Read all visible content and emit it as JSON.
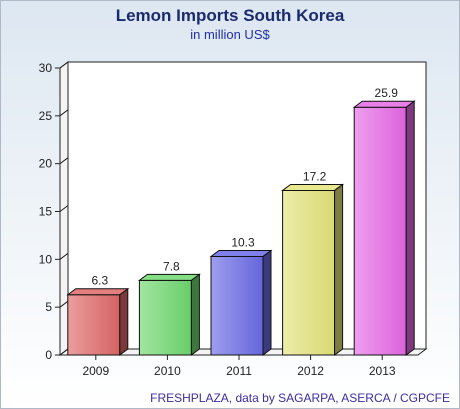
{
  "chart_data": {
    "type": "bar",
    "title": "Lemon Imports South Korea",
    "subtitle": "in million US$",
    "categories": [
      "2009",
      "2010",
      "2011",
      "2012",
      "2013"
    ],
    "values": [
      6.3,
      7.8,
      10.3,
      17.2,
      25.9
    ],
    "value_labels": [
      "6.3",
      "7.8",
      "10.3",
      "17.2",
      "25.9"
    ],
    "bar_colors": [
      "#e06868",
      "#6ed86e",
      "#6a6ae6",
      "#e4e47a",
      "#e668e6"
    ],
    "ylim": [
      0,
      30
    ],
    "yticks": [
      0,
      5,
      10,
      15,
      20,
      25,
      30
    ],
    "xlabel": "",
    "ylabel": "",
    "grid": false,
    "legend": "none",
    "source": "FRESHPLAZA, data by SAGARPA, ASERCA / CGPCFE"
  }
}
